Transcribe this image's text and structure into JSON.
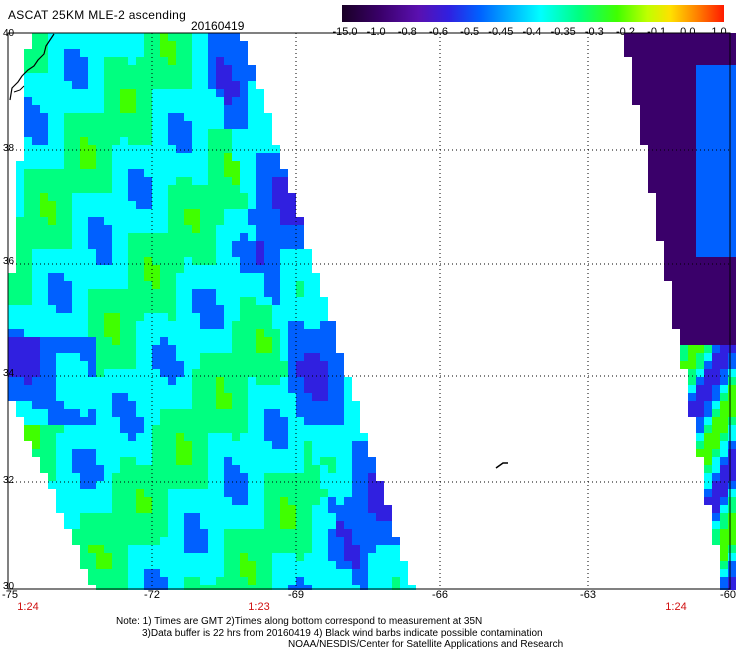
{
  "header": {
    "title": "ASCAT 25KM MLE-2 ascending",
    "date": "20160419"
  },
  "colorbar": {
    "labels": [
      "-15.0",
      "-1.0",
      "-0.8",
      "-0.6",
      "-0.5",
      "-0.45",
      "-0.4",
      "-0.35",
      "-0.3",
      "-0.2",
      "-0.1",
      "0.0",
      "1.0"
    ],
    "colors": [
      "#1a0026",
      "#3a006a",
      "#5a10b0",
      "#3020e0",
      "#0060ff",
      "#00b0ff",
      "#00ffff",
      "#00ff80",
      "#40ff00",
      "#c0ff00",
      "#ffe000",
      "#ff8000",
      "#ff1a00"
    ]
  },
  "map": {
    "lat_labels": [
      "40",
      "38",
      "36",
      "34",
      "32",
      "30"
    ],
    "lon_labels": [
      "-75",
      "-72",
      "-69",
      "-66",
      "-63",
      "-60"
    ],
    "time_labels": [
      "1:24",
      "1:23",
      "1:24"
    ],
    "swath_colors": [
      "#40ff00",
      "#00ff80",
      "#00ffff",
      "#0060ff",
      "#3020e0",
      "#5a10b0",
      "#3a006a"
    ]
  },
  "notes": {
    "line1": "Note: 1) Times are GMT 2)Times along bottom correspond to measurement at 35N",
    "line2": "3)Data buffer is 22 hrs from 20160419 4) Black wind barbs indicate possible contamination",
    "line3": "NOAA/NESDIS/Center for Satellite Applications and Research"
  }
}
